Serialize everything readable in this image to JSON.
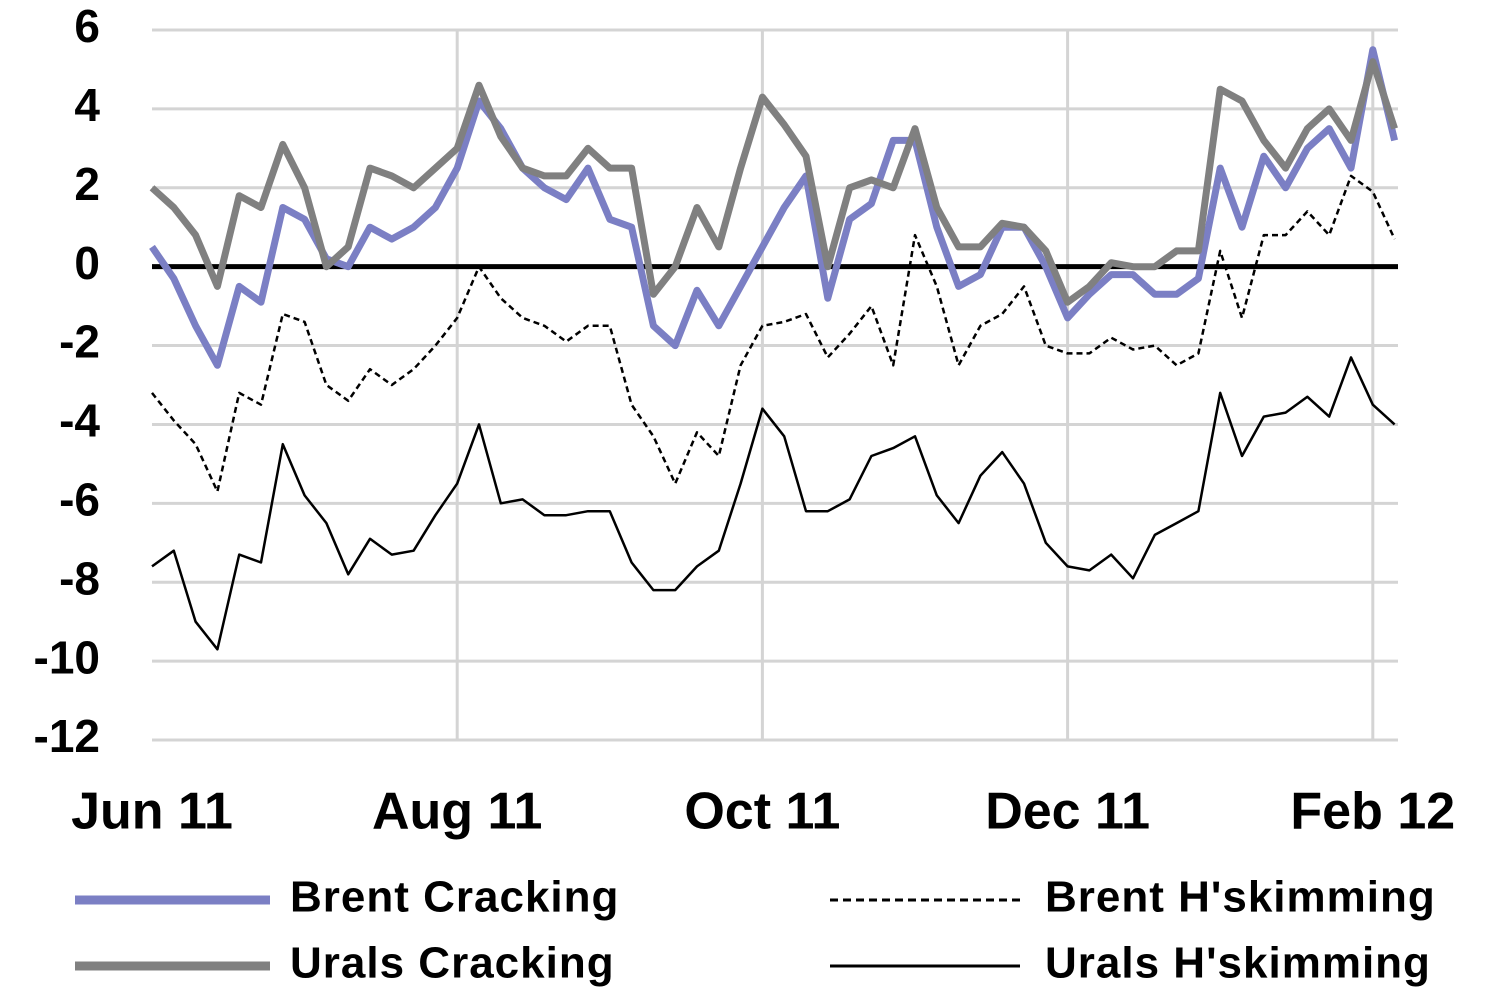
{
  "chart_data": {
    "type": "line",
    "categories": [
      "Jun 11",
      null,
      null,
      null,
      null,
      null,
      null,
      null,
      null,
      null,
      null,
      null,
      null,
      null,
      "Aug 11",
      null,
      null,
      null,
      null,
      null,
      null,
      null,
      null,
      null,
      null,
      null,
      null,
      null,
      "Oct 11",
      null,
      null,
      null,
      null,
      null,
      null,
      null,
      null,
      null,
      null,
      null,
      null,
      null,
      "Dec 11",
      null,
      null,
      null,
      null,
      null,
      null,
      null,
      null,
      null,
      null,
      null,
      null,
      null,
      "Feb 12",
      null
    ],
    "series": [
      {
        "name": "Brent Cracking",
        "color": "#7b7fc4",
        "line_style": "solid",
        "values": [
          0.5,
          -0.3,
          -1.5,
          -2.5,
          -0.5,
          -0.9,
          1.5,
          1.2,
          0.2,
          0,
          1,
          0.7,
          1.0,
          1.5,
          2.5,
          4.2,
          3.5,
          2.5,
          2,
          1.7,
          2.5,
          1.2,
          1,
          -1.5,
          -2,
          -0.6,
          -1.5,
          -0.5,
          0.5,
          1.5,
          2.3,
          -0.8,
          1.2,
          1.6,
          3.2,
          3.2,
          1,
          -0.5,
          -0.2,
          1,
          1,
          0,
          -1.3,
          -0.7,
          -0.2,
          -0.2,
          -0.7,
          -0.7,
          -0.3,
          2.5,
          1,
          2.8,
          2,
          3,
          3.5,
          2.5,
          5.5,
          3.2
        ]
      },
      {
        "name": "Urals Cracking",
        "color": "#808080",
        "line_style": "solid",
        "values": [
          2,
          1.5,
          0.8,
          -0.5,
          1.8,
          1.5,
          3.1,
          2,
          0,
          0.5,
          2.5,
          2.3,
          2,
          2.5,
          3,
          4.6,
          3.3,
          2.5,
          2.3,
          2.3,
          3.0,
          2.5,
          2.5,
          -0.7,
          0,
          1.5,
          0.5,
          2.5,
          4.3,
          3.6,
          2.8,
          0,
          2,
          2.2,
          2,
          3.5,
          1.5,
          0.5,
          0.5,
          1.1,
          1.0,
          0.4,
          -0.9,
          -0.5,
          0.1,
          0,
          0,
          0.4,
          0.4,
          4.5,
          4.2,
          3.2,
          2.5,
          3.5,
          4,
          3.2,
          5.2,
          3.5
        ]
      },
      {
        "name": "Brent H'skimming",
        "color": "#000000",
        "line_style": "dashed",
        "values": [
          -3.2,
          -3.9,
          -4.5,
          -5.7,
          -3.2,
          -3.5,
          -1.2,
          -1.4,
          -3,
          -3.4,
          -2.6,
          -3,
          -2.6,
          -2.0,
          -1.3,
          0,
          -0.8,
          -1.3,
          -1.5,
          -1.9,
          -1.5,
          -1.5,
          -3.5,
          -4.3,
          -5.5,
          -4.2,
          -4.8,
          -2.5,
          -1.5,
          -1.4,
          -1.2,
          -2.3,
          -1.7,
          -1.0,
          -2.5,
          0.8,
          -0.5,
          -2.5,
          -1.5,
          -1.2,
          -0.5,
          -2,
          -2.2,
          -2.2,
          -1.8,
          -2.1,
          -2.0,
          -2.5,
          -2.2,
          0.4,
          -1.3,
          0.8,
          0.8,
          1.4,
          0.8,
          2.3,
          1.9,
          0.7
        ]
      },
      {
        "name": "Urals H'skimming",
        "color": "#000000",
        "line_style": "solid",
        "values": [
          -7.6,
          -7.2,
          -9.0,
          -9.7,
          -7.3,
          -7.5,
          -4.5,
          -5.8,
          -6.5,
          -7.8,
          -6.9,
          -7.3,
          -7.2,
          -6.3,
          -5.5,
          -4.0,
          -6.0,
          -5.9,
          -6.3,
          -6.3,
          -6.2,
          -6.2,
          -7.5,
          -8.2,
          -8.2,
          -7.6,
          -7.2,
          -5.5,
          -3.6,
          -4.3,
          -6.2,
          -6.2,
          -5.9,
          -4.8,
          -4.6,
          -4.3,
          -5.8,
          -6.5,
          -5.3,
          -4.7,
          -5.5,
          -7.0,
          -7.6,
          -7.7,
          -7.3,
          -7.9,
          -6.8,
          -6.5,
          -6.2,
          -3.2,
          -4.8,
          -3.8,
          -3.7,
          -3.3,
          -3.8,
          -2.3,
          -3.5,
          -4.0
        ]
      }
    ],
    "ylim": [
      -12,
      6
    ],
    "yticks": [
      -12,
      -10,
      -8,
      -6,
      -4,
      -2,
      0,
      2,
      4,
      6
    ],
    "grid": true,
    "legend": "bottom"
  }
}
